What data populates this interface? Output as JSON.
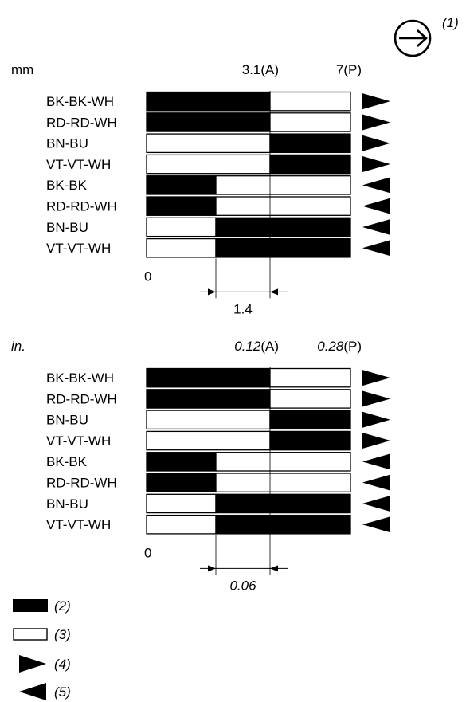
{
  "direction_symbol": {
    "icon": "right-arrow-in-circle-icon",
    "label": "(1)"
  },
  "sections": [
    {
      "unit": "mm",
      "unit_italic": false,
      "pos_a_value": "3.1",
      "pos_a_suffix": "(A)",
      "pos_p_value": "7",
      "pos_p_suffix": "(P)",
      "values_italic": false,
      "zero": "0",
      "dimension": "1.4",
      "dimension_italic": false,
      "rows": [
        {
          "label": "BK-BK-WH",
          "pattern": "1100",
          "arrow": "right"
        },
        {
          "label": "RD-RD-WH",
          "pattern": "1100",
          "arrow": "right"
        },
        {
          "label": "BN-BU",
          "pattern": "0011",
          "arrow": "right"
        },
        {
          "label": "VT-VT-WH",
          "pattern": "0011",
          "arrow": "right"
        },
        {
          "label": "BK-BK",
          "pattern": "1000",
          "arrow": "left"
        },
        {
          "label": "RD-RD-WH",
          "pattern": "1000",
          "arrow": "left"
        },
        {
          "label": "BN-BU",
          "pattern": "0111",
          "arrow": "left"
        },
        {
          "label": "VT-VT-WH",
          "pattern": "0111",
          "arrow": "left"
        }
      ]
    },
    {
      "unit": "in.",
      "unit_italic": true,
      "pos_a_value": "0.12",
      "pos_a_suffix": "(A)",
      "pos_p_value": "0.28",
      "pos_p_suffix": "(P)",
      "values_italic": true,
      "zero": "0",
      "dimension": "0.06",
      "dimension_italic": true,
      "rows": [
        {
          "label": "BK-BK-WH",
          "pattern": "1100",
          "arrow": "right"
        },
        {
          "label": "RD-RD-WH",
          "pattern": "1100",
          "arrow": "right"
        },
        {
          "label": "BN-BU",
          "pattern": "0011",
          "arrow": "right"
        },
        {
          "label": "VT-VT-WH",
          "pattern": "0011",
          "arrow": "right"
        },
        {
          "label": "BK-BK",
          "pattern": "1000",
          "arrow": "left"
        },
        {
          "label": "RD-RD-WH",
          "pattern": "1000",
          "arrow": "left"
        },
        {
          "label": "BN-BU",
          "pattern": "0111",
          "arrow": "left"
        },
        {
          "label": "VT-VT-WH",
          "pattern": "0111",
          "arrow": "left"
        }
      ]
    }
  ],
  "legend": [
    {
      "label": "(2)",
      "icon": "contact-closed-black-block-icon"
    },
    {
      "label": "(3)",
      "icon": "contact-open-white-block-icon"
    },
    {
      "label": "(4)",
      "icon": "right-triangle-icon"
    },
    {
      "label": "(5)",
      "icon": "left-triangle-icon"
    }
  ]
}
